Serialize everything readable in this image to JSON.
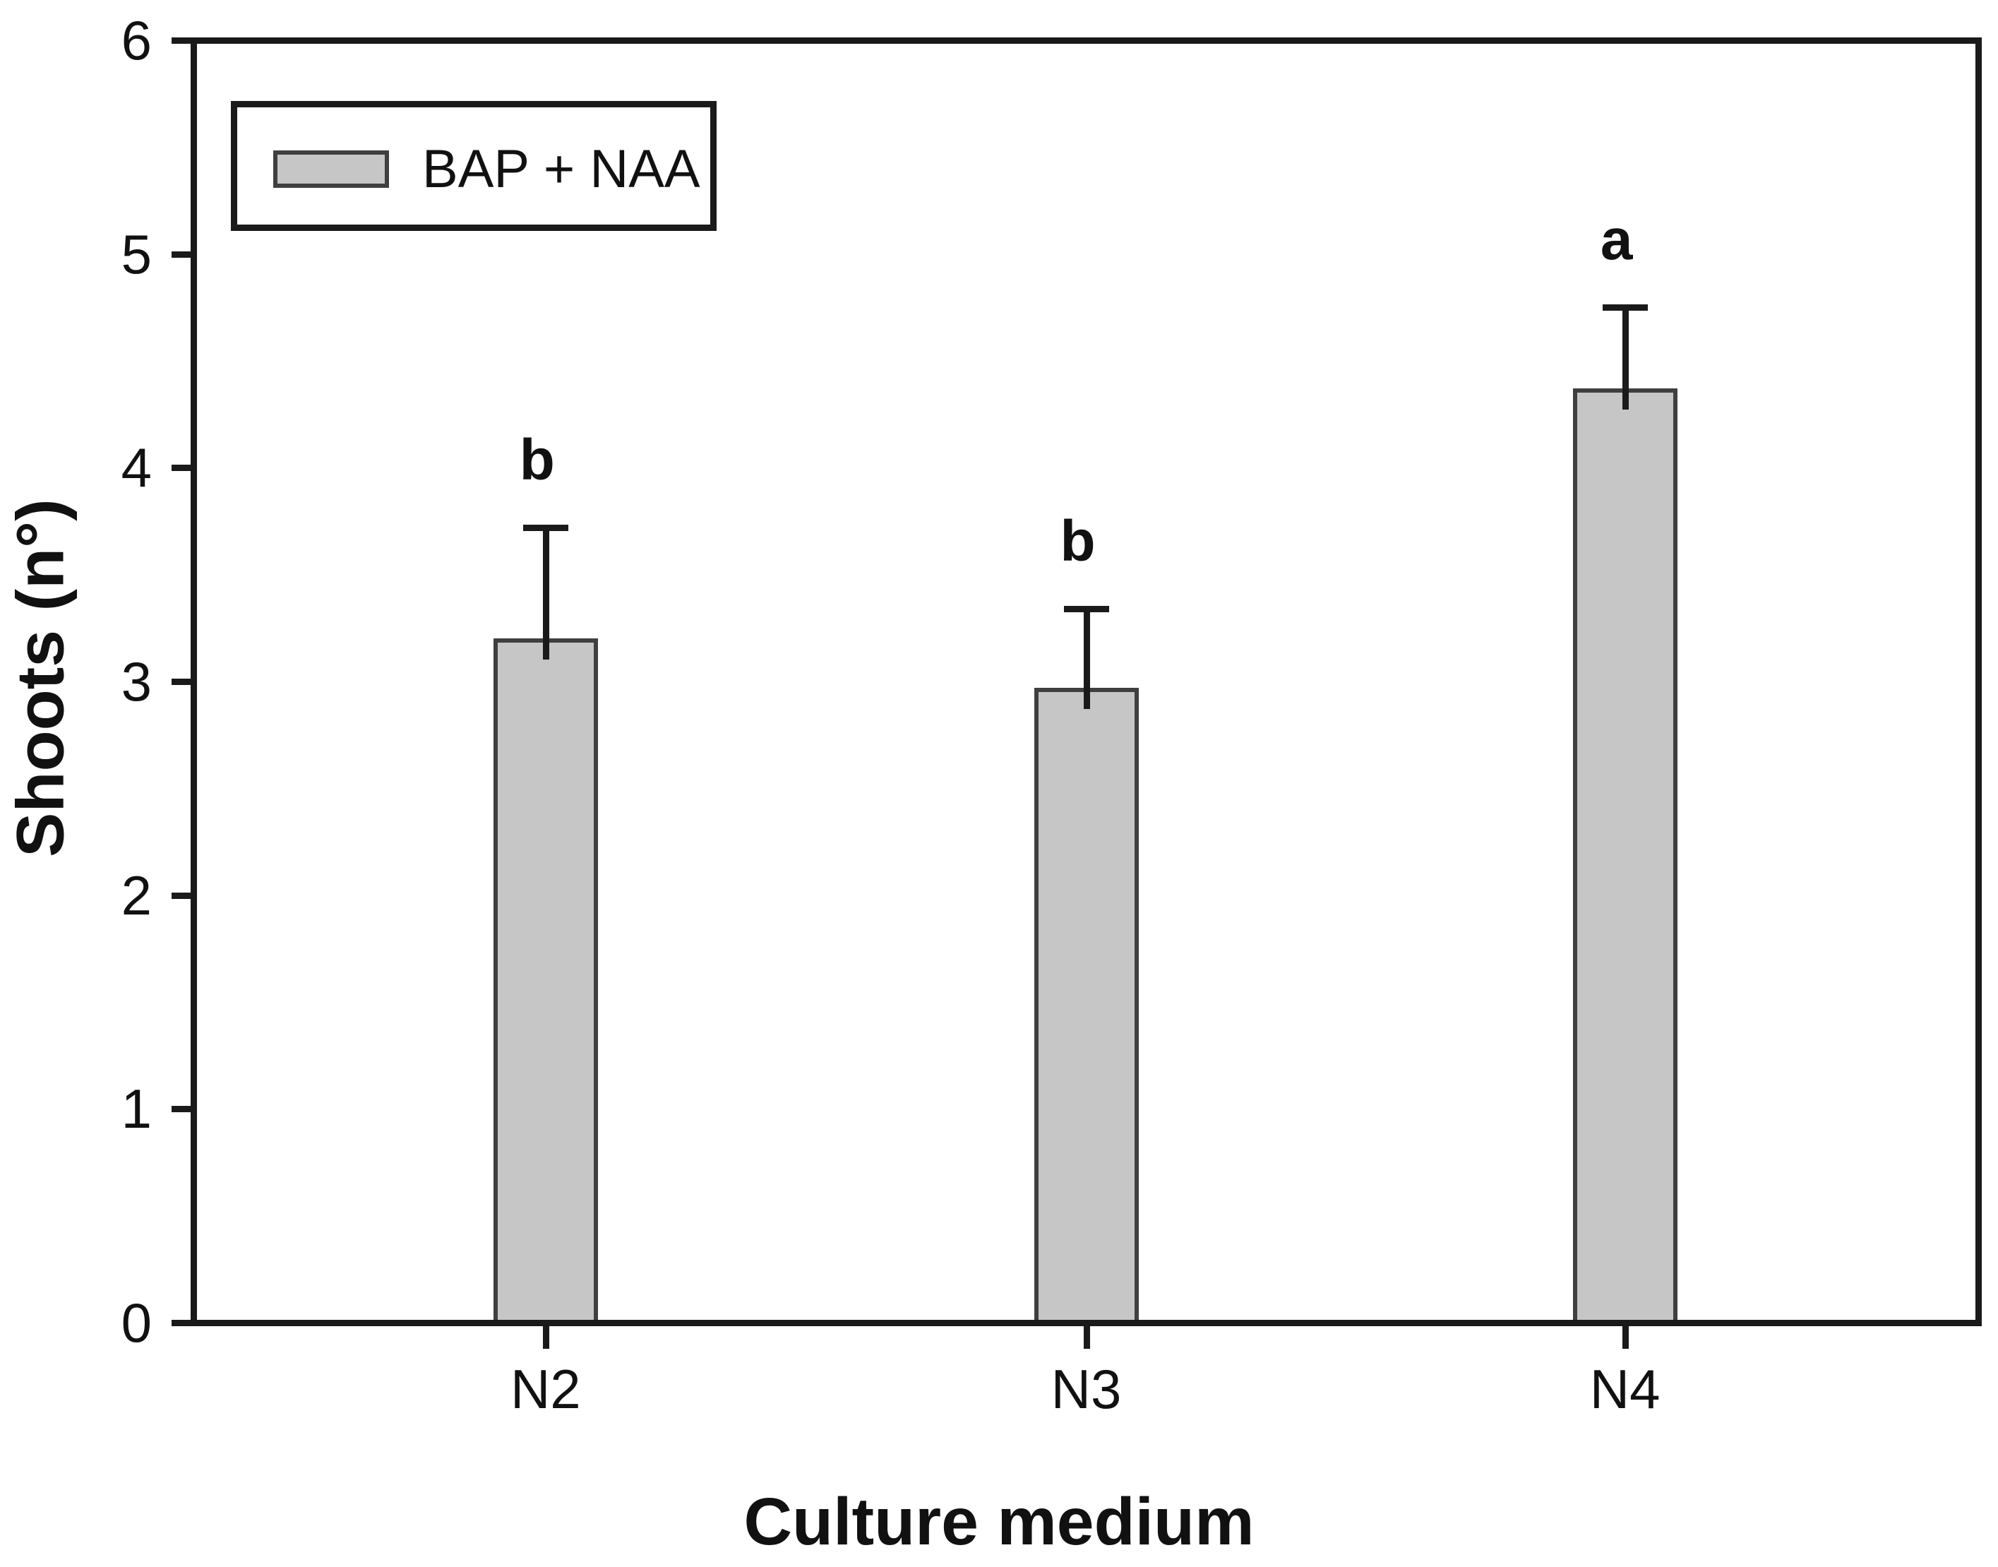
{
  "figure": {
    "background": "#ffffff",
    "axis_color": "#1a1a1a",
    "bar_fill": "#c6c6c6",
    "bar_edge": "#3f3f3f"
  },
  "chart_data": {
    "type": "bar",
    "title": "",
    "xlabel": "Culture medium",
    "ylabel": "Shoots (n°)",
    "categories": [
      "N2",
      "N3",
      "N4"
    ],
    "series": [
      {
        "name": "BAP + NAA",
        "values": [
          3.2,
          2.97,
          4.37
        ],
        "error_upper": [
          3.72,
          3.34,
          4.75
        ],
        "sig_letters": [
          "b",
          "b",
          "a"
        ]
      }
    ],
    "ylim": [
      0,
      6
    ],
    "yticks": [
      0,
      1,
      2,
      3,
      4,
      5,
      6
    ],
    "grid": false,
    "legend": {
      "position": "top-left",
      "entries": [
        "BAP + NAA"
      ]
    }
  }
}
